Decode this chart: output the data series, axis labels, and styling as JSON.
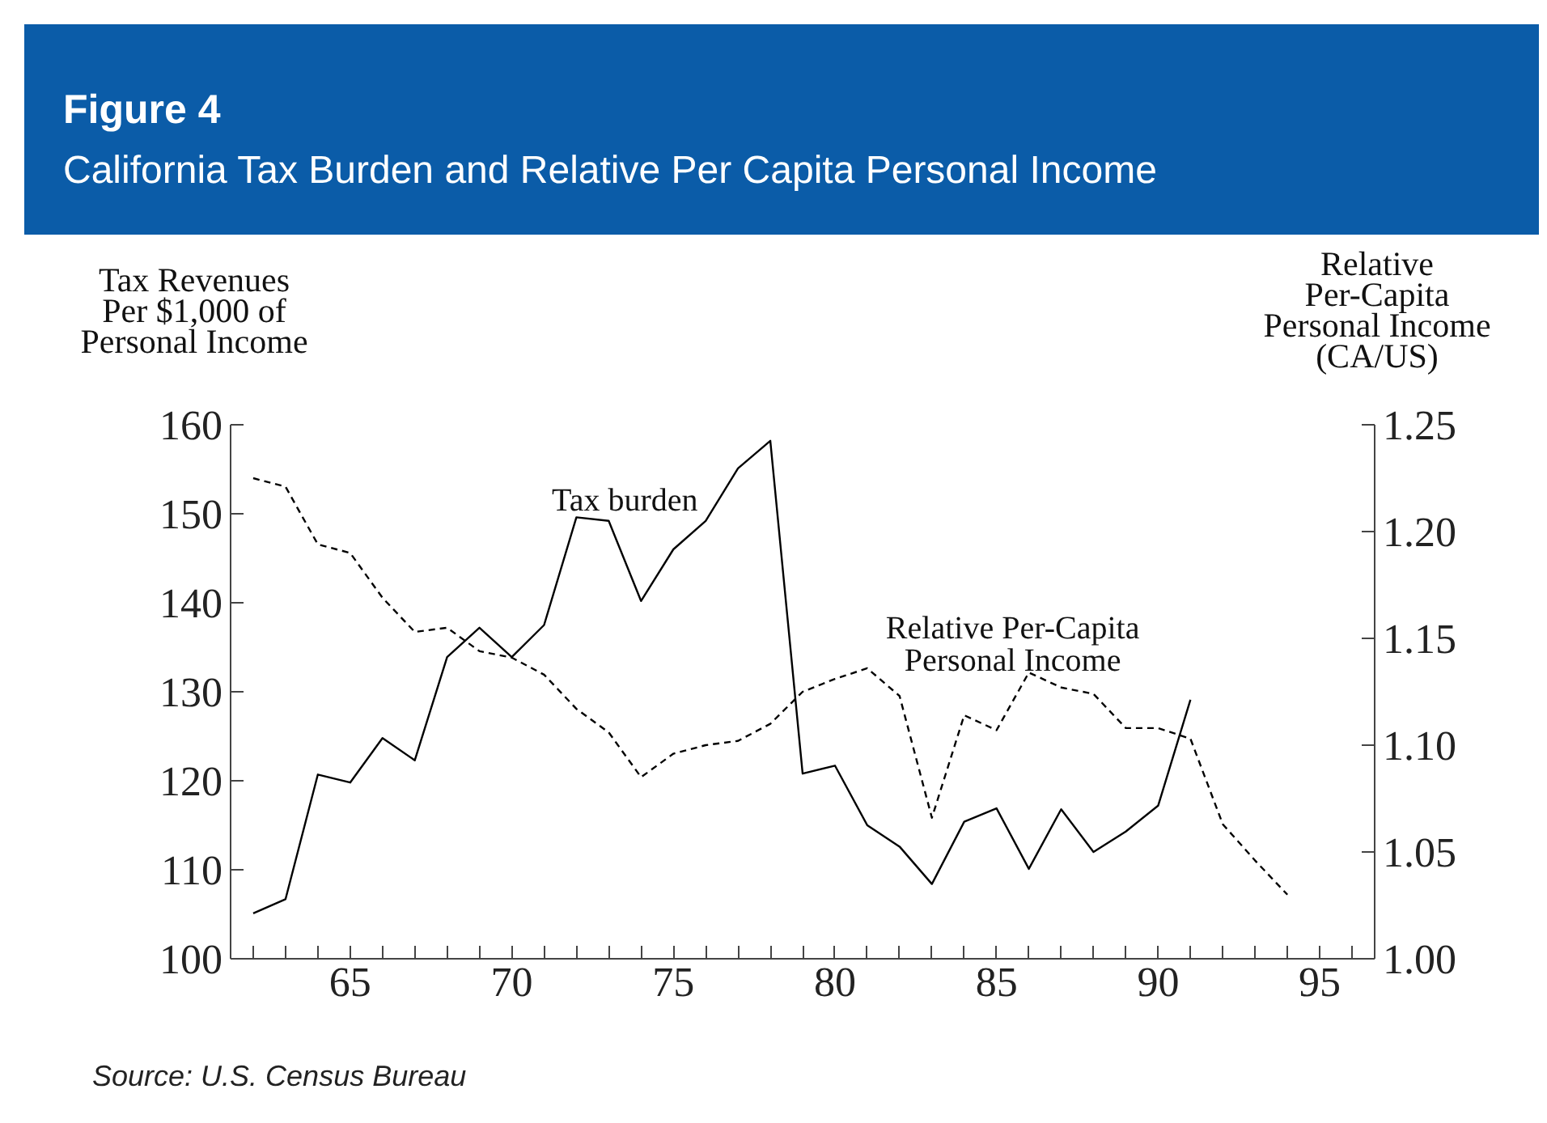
{
  "chart_data": {
    "type": "line",
    "title": "Figure 4",
    "subtitle": "California Tax Burden and Relative Per Capita Personal Income",
    "ylabel": "Tax Revenues\nPer $1,000 of\nPersonal Income",
    "y2label": "Relative\nPer-Capita\nPersonal Income\n(CA/US)",
    "annotations": [
      "Source: U.S. Census Bureau"
    ],
    "x": [
      62,
      63,
      64,
      65,
      66,
      67,
      68,
      69,
      70,
      71,
      72,
      73,
      74,
      75,
      76,
      77,
      78,
      79,
      80,
      81,
      82,
      83,
      84,
      85,
      86,
      87,
      88,
      89,
      90,
      91,
      92,
      93,
      94
    ],
    "series": [
      {
        "name": "Tax burden",
        "color": "#000000",
        "line_style": "solid",
        "values": [
          105.1,
          106.7,
          120.7,
          119.8,
          124.8,
          122.3,
          133.9,
          137.2,
          133.9,
          137.5,
          149.6,
          149.2,
          140.2,
          146.0,
          149.2,
          155.1,
          158.2,
          120.8,
          121.7,
          115.0,
          112.6,
          108.4,
          115.4,
          116.9,
          110.1,
          116.8,
          112.0,
          114.3,
          117.2,
          129.1,
          null,
          null,
          null
        ]
      },
      {
        "name": "Relative Per-Capita\nPersonal Income",
        "color": "#000000",
        "line_style": "dashed",
        "axis": "y2",
        "values": [
          1.225,
          1.221,
          1.194,
          1.19,
          1.169,
          1.153,
          1.155,
          1.144,
          1.141,
          1.133,
          1.117,
          1.106,
          1.085,
          1.096,
          1.1,
          1.102,
          1.11,
          1.125,
          1.131,
          1.136,
          1.123,
          1.066,
          1.114,
          1.107,
          1.134,
          1.127,
          1.124,
          1.108,
          1.108,
          1.103,
          1.063,
          1.046,
          1.03
        ]
      }
    ],
    "xlim": [
      61.3,
      96.7
    ],
    "xticks": [
      {
        "value": 62,
        "label": null
      },
      {
        "value": 63,
        "label": null
      },
      {
        "value": 64,
        "label": null
      },
      65,
      {
        "value": 66,
        "label": null
      },
      {
        "value": 67,
        "label": null
      },
      {
        "value": 68,
        "label": null
      },
      {
        "value": 69,
        "label": null
      },
      70,
      {
        "value": 71,
        "label": null
      },
      {
        "value": 72,
        "label": null
      },
      {
        "value": 73,
        "label": null
      },
      {
        "value": 74,
        "label": null
      },
      75,
      {
        "value": 76,
        "label": null
      },
      {
        "value": 77,
        "label": null
      },
      {
        "value": 78,
        "label": null
      },
      {
        "value": 79,
        "label": null
      },
      80,
      {
        "value": 81,
        "label": null
      },
      {
        "value": 82,
        "label": null
      },
      {
        "value": 83,
        "label": null
      },
      {
        "value": 84,
        "label": null
      },
      85,
      {
        "value": 86,
        "label": null
      },
      {
        "value": 87,
        "label": null
      },
      {
        "value": 88,
        "label": null
      },
      {
        "value": 89,
        "label": null
      },
      90,
      {
        "value": 91,
        "label": null
      },
      {
        "value": 92,
        "label": null
      },
      {
        "value": 93,
        "label": null
      },
      {
        "value": 94,
        "label": null
      },
      95,
      {
        "value": 96,
        "label": null
      }
    ],
    "ylim": [
      100,
      160
    ],
    "yticks": [
      100,
      110,
      120,
      130,
      140,
      150,
      160
    ],
    "y2lim": [
      1.0,
      1.25
    ],
    "y2ticks": [
      {
        "value": 1.0,
        "label": "1.00"
      },
      1.05,
      {
        "value": 1.1,
        "label": "1.10"
      },
      1.15,
      {
        "value": 1.2,
        "label": "1.20"
      },
      1.25
    ],
    "grid": false,
    "legend": false
  }
}
